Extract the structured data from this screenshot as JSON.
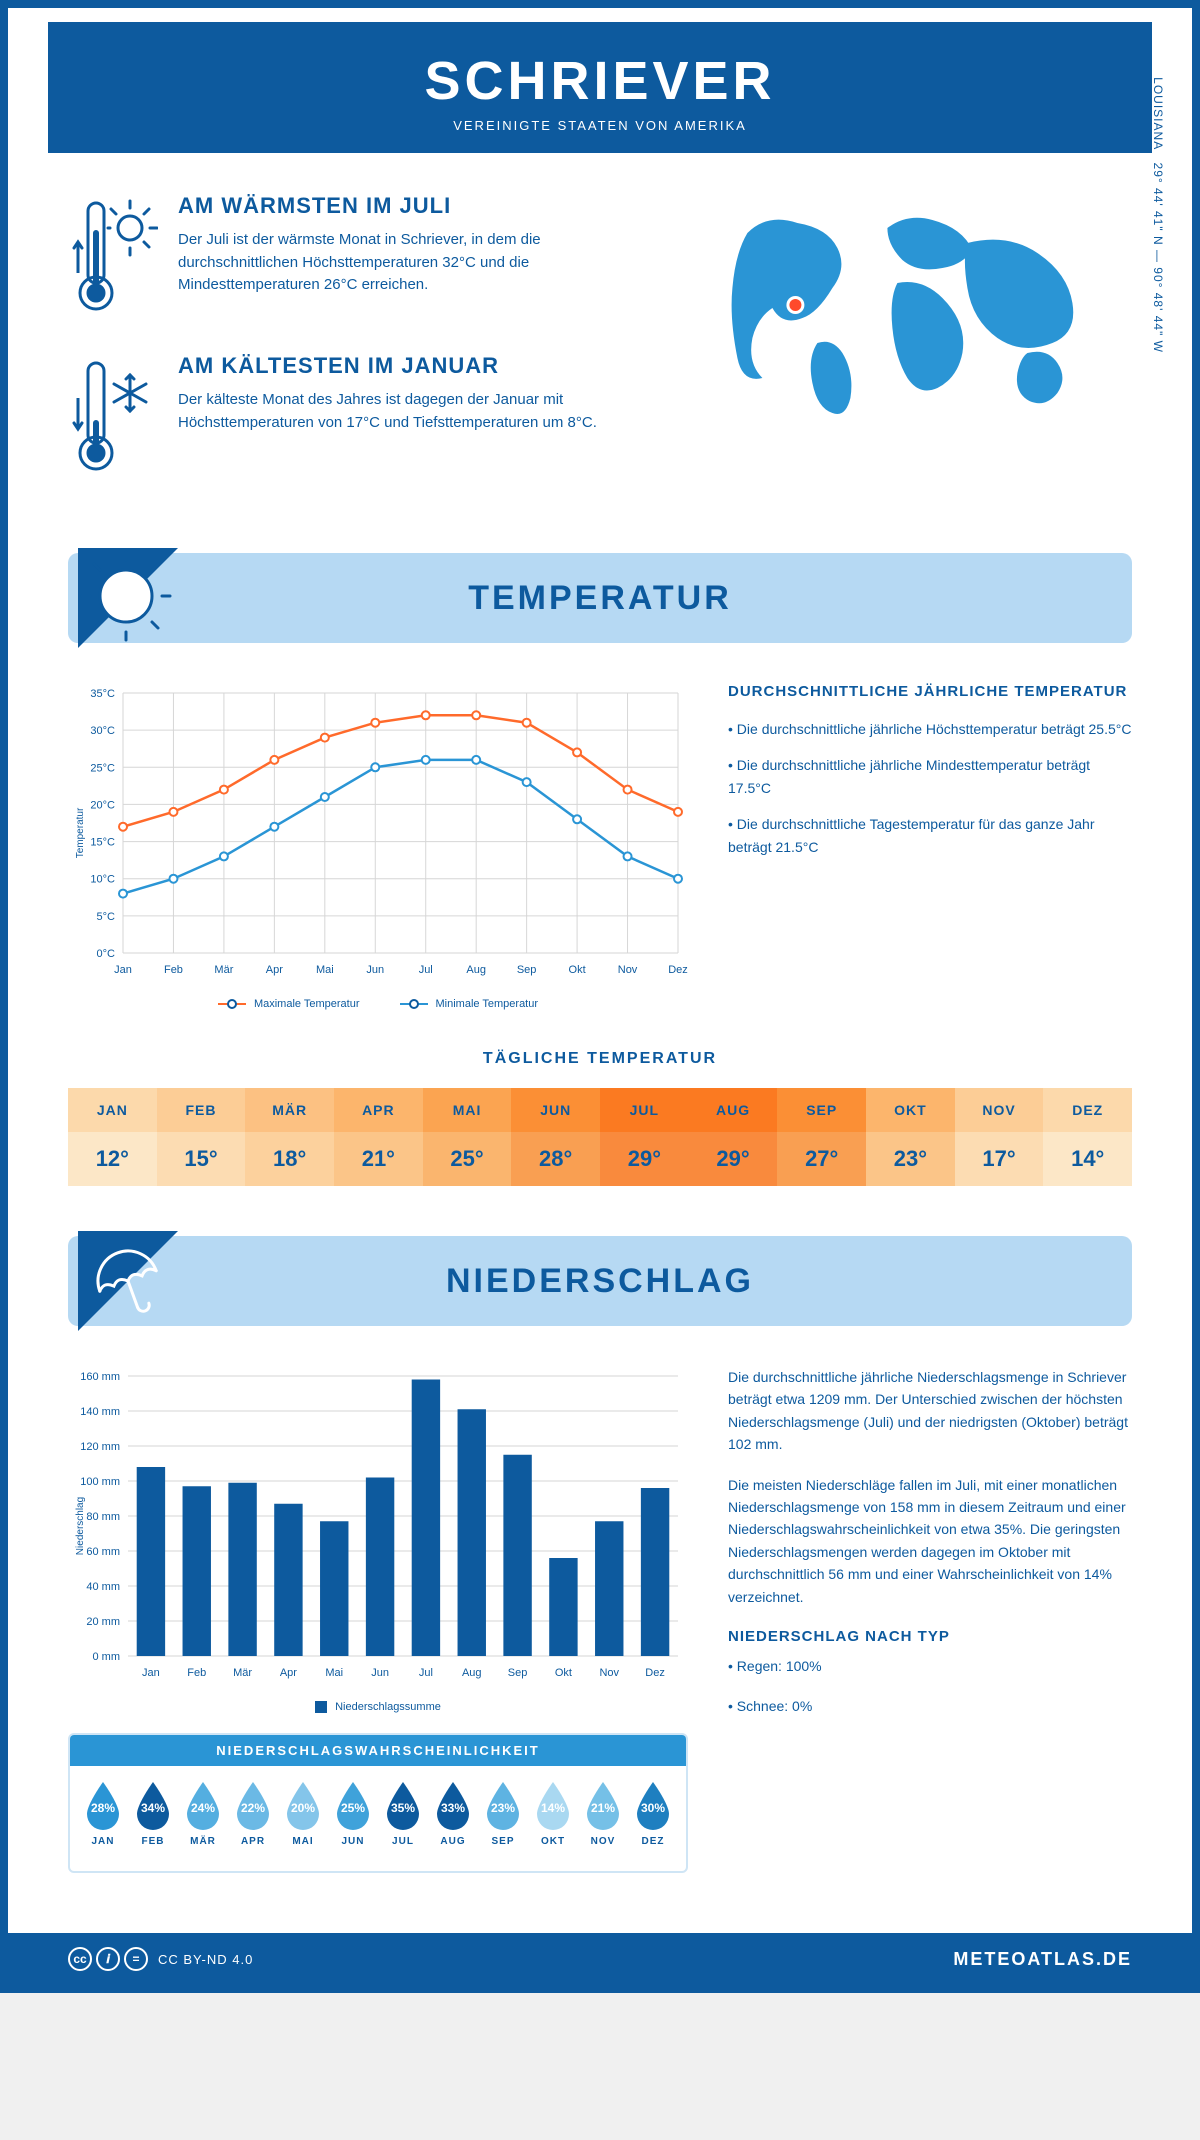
{
  "header": {
    "title": "SCHRIEVER",
    "subtitle": "VEREINIGTE STAATEN VON AMERIKA"
  },
  "warmest": {
    "heading": "AM WÄRMSTEN IM JULI",
    "text": "Der Juli ist der wärmste Monat in Schriever, in dem die durchschnittlichen Höchsttemperaturen 32°C und die Mindesttemperaturen 26°C erreichen."
  },
  "coldest": {
    "heading": "AM KÄLTESTEN IM JANUAR",
    "text": "Der kälteste Monat des Jahres ist dagegen der Januar mit Höchsttemperaturen von 17°C und Tiefsttemperaturen um 8°C."
  },
  "location": {
    "region": "LOUISIANA",
    "coords": "29° 44' 41\" N — 90° 48' 44\" W"
  },
  "temperature": {
    "banner": "TEMPERATUR",
    "info_heading": "DURCHSCHNITTLICHE JÄHRLICHE TEMPERATUR",
    "bullets": [
      "• Die durchschnittliche jährliche Höchsttemperatur beträgt 25.5°C",
      "• Die durchschnittliche jährliche Mindesttemperatur beträgt 17.5°C",
      "• Die durchschnittliche Tagestemperatur für das ganze Jahr beträgt 21.5°C"
    ],
    "chart": {
      "type": "line",
      "months": [
        "Jan",
        "Feb",
        "Mär",
        "Apr",
        "Mai",
        "Jun",
        "Jul",
        "Aug",
        "Sep",
        "Okt",
        "Nov",
        "Dez"
      ],
      "max_values": [
        17,
        19,
        22,
        26,
        29,
        31,
        32,
        32,
        31,
        27,
        22,
        19
      ],
      "min_values": [
        8,
        10,
        13,
        17,
        21,
        25,
        26,
        26,
        23,
        18,
        13,
        10
      ],
      "max_color": "#ff6a2b",
      "min_color": "#2a95d5",
      "ylabel": "Temperatur",
      "ylim": [
        0,
        35
      ],
      "ytick_step": 5,
      "grid_color": "#d6d6d6",
      "background": "#ffffff",
      "legend_max": "Maximale Temperatur",
      "legend_min": "Minimale Temperatur"
    },
    "daily_heading": "TÄGLICHE TEMPERATUR",
    "daily": {
      "months": [
        "JAN",
        "FEB",
        "MÄR",
        "APR",
        "MAI",
        "JUN",
        "JUL",
        "AUG",
        "SEP",
        "OKT",
        "NOV",
        "DEZ"
      ],
      "values": [
        "12°",
        "15°",
        "18°",
        "21°",
        "25°",
        "28°",
        "29°",
        "29°",
        "27°",
        "23°",
        "17°",
        "14°"
      ],
      "head_colors": [
        "#fcd9ab",
        "#fccd96",
        "#fcc182",
        "#fcb56c",
        "#fba451",
        "#fb8f35",
        "#fb7a21",
        "#fb7a21",
        "#fb8f35",
        "#fcb56c",
        "#fccd96",
        "#fcd9ab"
      ],
      "val_colors": [
        "#fce7c7",
        "#fcdcb2",
        "#fcd19d",
        "#fbc588",
        "#fab56e",
        "#f99f52",
        "#f98a3d",
        "#f98a3d",
        "#f99f52",
        "#fbc588",
        "#fcdcb2",
        "#fce7c7"
      ]
    }
  },
  "precipitation": {
    "banner": "NIEDERSCHLAG",
    "chart": {
      "type": "bar",
      "months": [
        "Jan",
        "Feb",
        "Mär",
        "Apr",
        "Mai",
        "Jun",
        "Jul",
        "Aug",
        "Sep",
        "Okt",
        "Nov",
        "Dez"
      ],
      "values": [
        108,
        97,
        99,
        87,
        77,
        102,
        158,
        141,
        115,
        56,
        77,
        96
      ],
      "bar_color": "#0d5a9e",
      "ylabel": "Niederschlag",
      "ylim": [
        0,
        160
      ],
      "ytick_step": 20,
      "grid_color": "#d6d6d6",
      "legend": "Niederschlagssumme"
    },
    "text1": "Die durchschnittliche jährliche Niederschlagsmenge in Schriever beträgt etwa 1209 mm. Der Unterschied zwischen der höchsten Niederschlagsmenge (Juli) und der niedrigsten (Oktober) beträgt 102 mm.",
    "text2": "Die meisten Niederschläge fallen im Juli, mit einer monatlichen Niederschlagsmenge von 158 mm in diesem Zeitraum und einer Niederschlagswahrscheinlichkeit von etwa 35%. Die geringsten Niederschlagsmengen werden dagegen im Oktober mit durchschnittlich 56 mm und einer Wahrscheinlichkeit von 14% verzeichnet.",
    "type_heading": "NIEDERSCHLAG NACH TYP",
    "type1": "• Regen: 100%",
    "type2": "• Schnee: 0%",
    "probability": {
      "title": "NIEDERSCHLAGSWAHRSCHEINLICHKEIT",
      "months": [
        "JAN",
        "FEB",
        "MÄR",
        "APR",
        "MAI",
        "JUN",
        "JUL",
        "AUG",
        "SEP",
        "OKT",
        "NOV",
        "DEZ"
      ],
      "values": [
        "28%",
        "34%",
        "24%",
        "22%",
        "20%",
        "25%",
        "35%",
        "33%",
        "23%",
        "14%",
        "21%",
        "30%"
      ],
      "colors": [
        "#2a95d5",
        "#0d5a9e",
        "#54aee0",
        "#6bb9e5",
        "#84c5ea",
        "#3fa2da",
        "#0d5a9e",
        "#0d5a9e",
        "#5eb3e2",
        "#a9d8f1",
        "#75c0e7",
        "#1e7fc0"
      ]
    }
  },
  "footer": {
    "license": "CC BY-ND 4.0",
    "site": "METEOATLAS.DE"
  },
  "colors": {
    "primary": "#0d5a9e",
    "light_blue": "#b6d9f3",
    "accent": "#2a95d5"
  }
}
